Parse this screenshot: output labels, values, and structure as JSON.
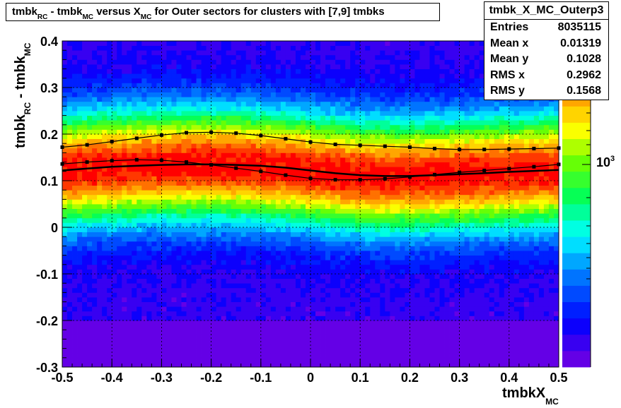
{
  "title": {
    "part1": "tmbk",
    "sub1": "RC",
    "part2": " - tmbk",
    "sub2": "MC",
    "part3": " versus X",
    "sub3": "MC",
    "part4": " for Outer sectors for clusters with [7,9] tmbks"
  },
  "stats": {
    "name": "tmbk_X_MC_Outerp3",
    "rows": [
      {
        "label": "Entries",
        "value": "8035115"
      },
      {
        "label": "Mean x",
        "value": "0.01319"
      },
      {
        "label": "Mean y",
        "value": "0.1028"
      },
      {
        "label": "RMS x",
        "value": "0.2962"
      },
      {
        "label": "RMS y",
        "value": "0.1568"
      }
    ]
  },
  "axis_labels": {
    "y_main": "tmbk",
    "y_sub1": "RC",
    "y_mid": " - tmbk",
    "y_sub2": "MC",
    "x_main": "tmbkX",
    "x_sub": "MC",
    "z_base": "10",
    "z_exp": "3"
  },
  "chart_data": {
    "type": "heatmap",
    "x_range": [
      -0.5,
      0.5
    ],
    "y_range": [
      -0.3,
      0.4
    ],
    "x_ticks": [
      -0.5,
      -0.4,
      -0.3,
      -0.2,
      -0.1,
      0,
      0.1,
      0.2,
      0.3,
      0.4,
      0.5
    ],
    "x_tick_labels": [
      "-0.5",
      "-0.4",
      "-0.3",
      "-0.2",
      "-0.1",
      "0",
      "0.1",
      "0.2",
      "0.3",
      "0.4",
      "0.5"
    ],
    "y_ticks": [
      -0.3,
      -0.2,
      -0.1,
      0,
      0.1,
      0.2,
      0.3,
      0.4
    ],
    "y_tick_labels": [
      "-0.3",
      "-0.2",
      "-0.1",
      "0",
      "0.1",
      "0.2",
      "0.3",
      "0.4"
    ],
    "grid": true,
    "z_scale": "log",
    "z_tick_label": "10^3",
    "overlays": [
      {
        "style": "markers",
        "x": [
          -0.5,
          -0.45,
          -0.4,
          -0.35,
          -0.3,
          -0.25,
          -0.2,
          -0.15,
          -0.1,
          -0.05,
          0,
          0.05,
          0.1,
          0.15,
          0.2,
          0.25,
          0.3,
          0.35,
          0.4,
          0.45,
          0.5
        ],
        "y": [
          0.172,
          0.177,
          0.184,
          0.191,
          0.198,
          0.203,
          0.204,
          0.202,
          0.197,
          0.19,
          0.183,
          0.178,
          0.176,
          0.174,
          0.172,
          0.169,
          0.167,
          0.167,
          0.168,
          0.169,
          0.17
        ]
      },
      {
        "style": "markers",
        "x": [
          -0.5,
          -0.45,
          -0.4,
          -0.35,
          -0.3,
          -0.25,
          -0.2,
          -0.15,
          -0.1,
          -0.05,
          0,
          0.05,
          0.1,
          0.15,
          0.2,
          0.25,
          0.3,
          0.35,
          0.4,
          0.45,
          0.5
        ],
        "y": [
          0.136,
          0.14,
          0.143,
          0.145,
          0.144,
          0.14,
          0.134,
          0.127,
          0.12,
          0.112,
          0.105,
          0.102,
          0.102,
          0.104,
          0.108,
          0.113,
          0.118,
          0.122,
          0.126,
          0.13,
          0.135
        ]
      },
      {
        "style": "line",
        "x": [
          -0.5,
          -0.45,
          -0.4,
          -0.35,
          -0.3,
          -0.25,
          -0.2,
          -0.15,
          -0.1,
          -0.05,
          0,
          0.05,
          0.1,
          0.15,
          0.2,
          0.25,
          0.3,
          0.35,
          0.4,
          0.45,
          0.5
        ],
        "y": [
          0.122,
          0.126,
          0.13,
          0.132,
          0.134,
          0.135,
          0.135,
          0.134,
          0.132,
          0.128,
          0.122,
          0.116,
          0.112,
          0.11,
          0.11,
          0.112,
          0.114,
          0.116,
          0.119,
          0.121,
          0.123
        ]
      }
    ]
  }
}
